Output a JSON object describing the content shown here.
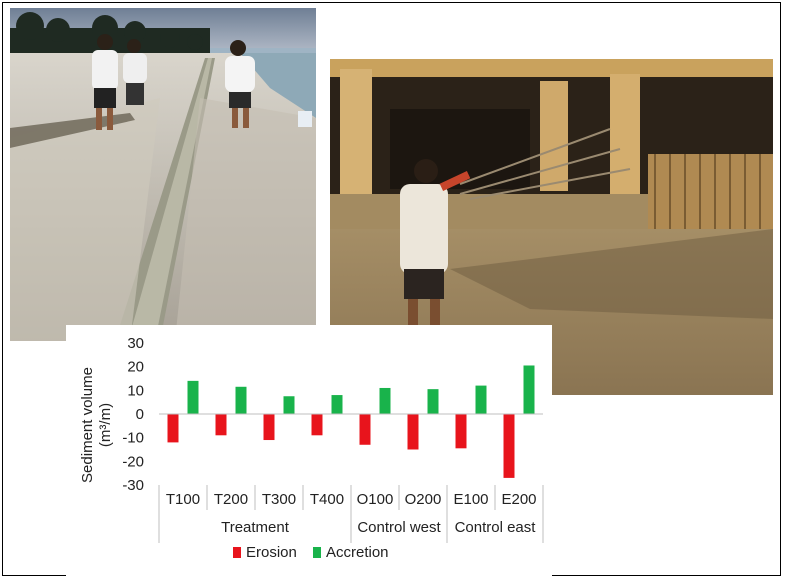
{
  "photos": [
    {
      "name": "trench-photo",
      "subject": "workers digging a trench on a beach"
    },
    {
      "name": "fence-photo",
      "subject": "worker carrying sand fence near beach building"
    }
  ],
  "colors": {
    "erosion": "#e8141c",
    "accretion": "#19b34b",
    "axis": "#bfbfbf"
  },
  "chart_data": {
    "type": "bar",
    "ylabel": "Sediment volume (m³/m)",
    "ylabel_line1": "Sediment volume",
    "ylabel_line2": "(m³/m)",
    "ylim": [
      -30,
      30
    ],
    "yticks": [
      30,
      20,
      10,
      0,
      -10,
      -20,
      -30
    ],
    "grid": false,
    "legend_position": "bottom",
    "categories": [
      "T100",
      "T200",
      "T300",
      "T400",
      "O100",
      "O200",
      "E100",
      "E200"
    ],
    "groups": [
      {
        "label": "Treatment",
        "categories": [
          "T100",
          "T200",
          "T300",
          "T400"
        ]
      },
      {
        "label": "Control west",
        "categories": [
          "O100",
          "O200"
        ]
      },
      {
        "label": "Control east",
        "categories": [
          "E100",
          "E200"
        ]
      }
    ],
    "series": [
      {
        "name": "Erosion",
        "values": [
          -12,
          -9,
          -11,
          -9,
          -13,
          -15,
          -14.5,
          -27
        ]
      },
      {
        "name": "Accretion",
        "values": [
          14,
          11.5,
          7.5,
          8,
          11,
          10.5,
          12,
          20.5
        ]
      }
    ]
  }
}
